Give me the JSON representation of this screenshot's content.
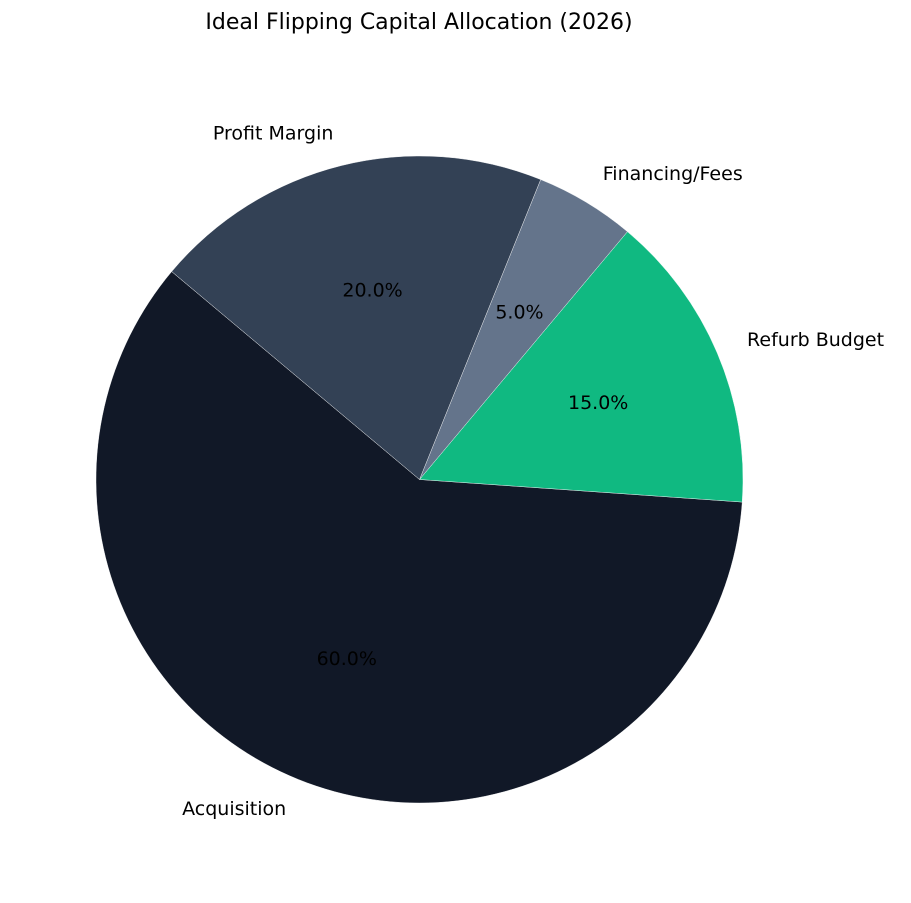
{
  "chart_data": {
    "type": "pie",
    "title": "Ideal Flipping Capital Allocation (2026)",
    "start_angle_deg": 140,
    "direction": "counterclockwise",
    "slices": [
      {
        "label": "Acquisition",
        "value": 60,
        "pct_label": "60.0%",
        "color": "#111827"
      },
      {
        "label": "Refurb Budget",
        "value": 15,
        "pct_label": "15.0%",
        "color": "#10b981"
      },
      {
        "label": "Financing/Fees",
        "value": 5,
        "pct_label": "5.0%",
        "color": "#64748b"
      },
      {
        "label": "Profit Margin",
        "value": 20,
        "pct_label": "20.0%",
        "color": "#334155"
      }
    ]
  }
}
